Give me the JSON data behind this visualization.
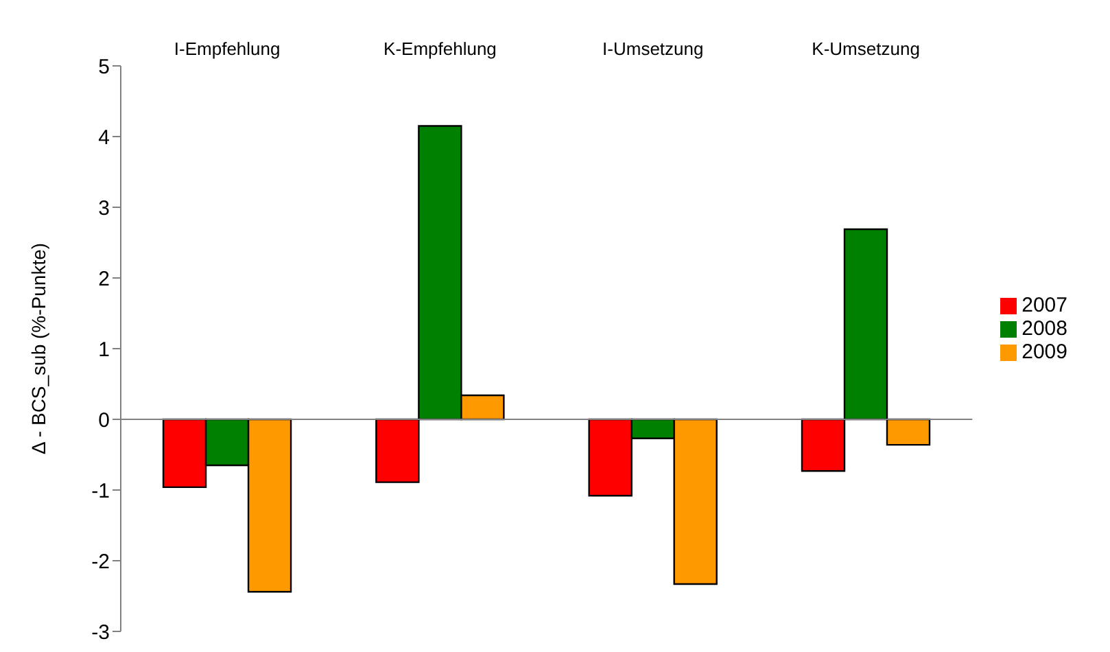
{
  "chart_data": {
    "type": "bar",
    "ylabel": "Δ - BCS_sub (%-Punkte)",
    "categories": [
      "I-Empfehlung",
      "K-Empfehlung",
      "I-Umsetzung",
      "K-Umsetzung"
    ],
    "series": [
      {
        "name": "2007",
        "color": "#ff0000",
        "values": [
          -0.96,
          -0.89,
          -1.08,
          -0.73
        ]
      },
      {
        "name": "2008",
        "color": "#008000",
        "values": [
          -0.65,
          4.15,
          -0.27,
          2.69
        ]
      },
      {
        "name": "2009",
        "color": "#ff9900",
        "values": [
          -2.44,
          0.34,
          -2.33,
          -0.36
        ]
      }
    ],
    "ylim": [
      -3,
      5
    ],
    "yticks": [
      -3,
      -2,
      -1,
      0,
      1,
      2,
      3,
      4,
      5
    ],
    "legend": "right"
  }
}
